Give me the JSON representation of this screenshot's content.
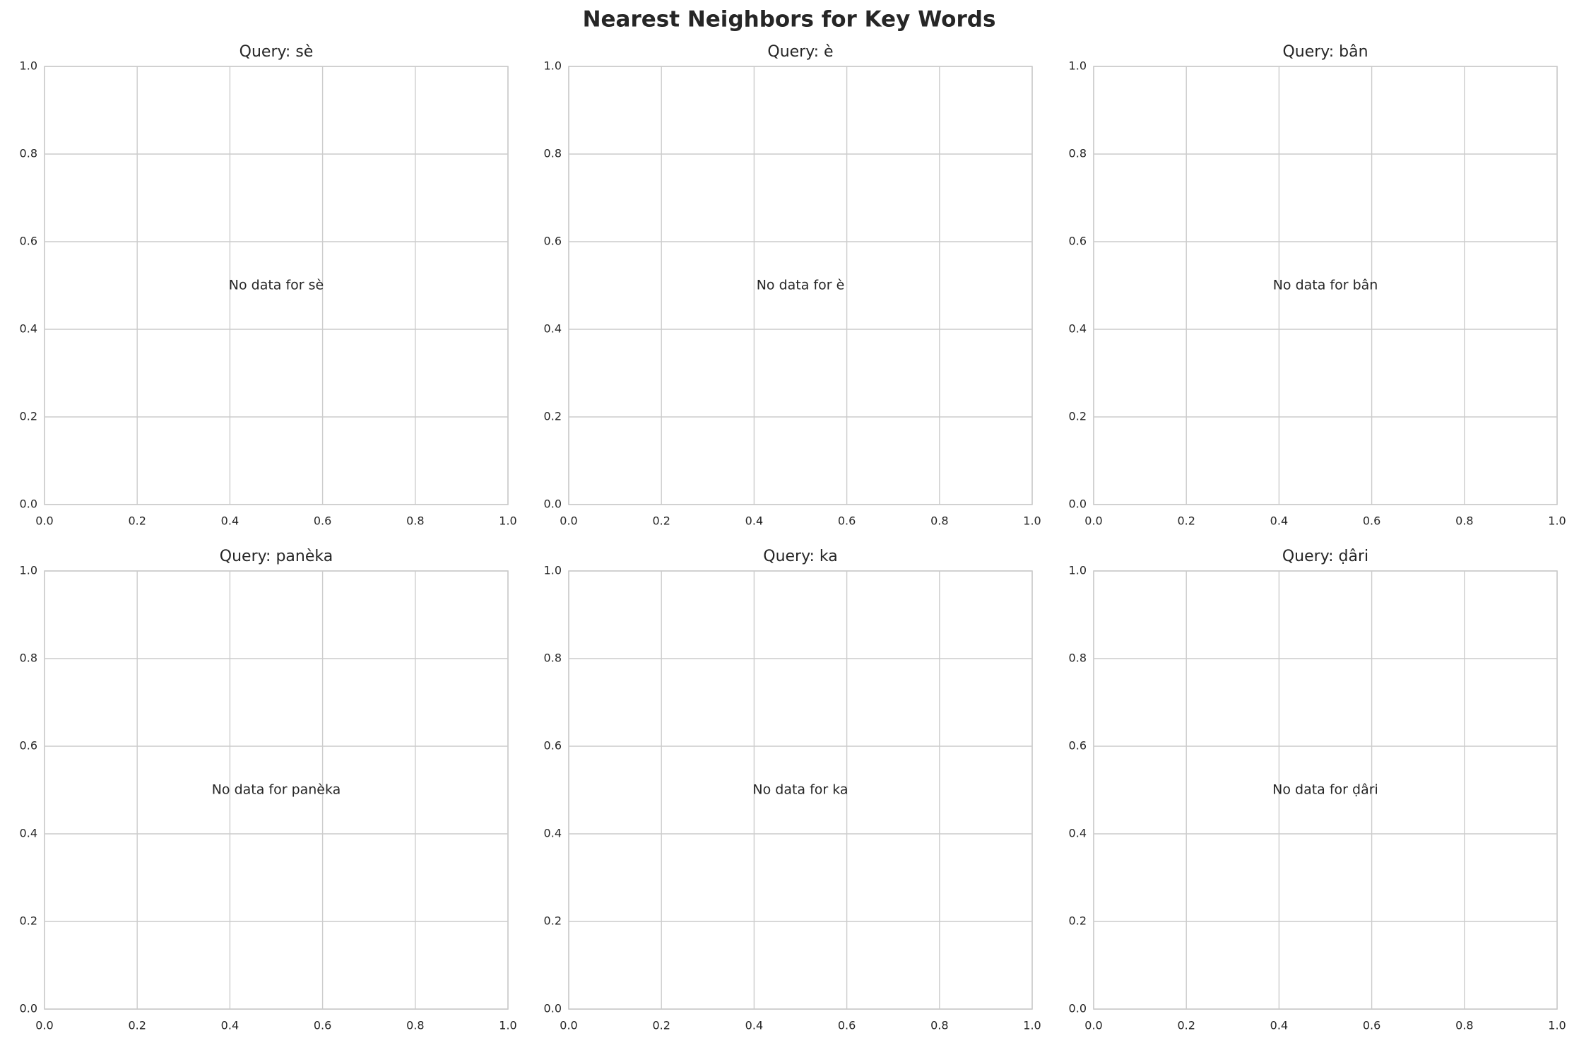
{
  "title": "Nearest Neighbors for Key Words",
  "chart_data": [
    {
      "type": "scatter",
      "title": "Query: sè",
      "annotation": "No data for sè",
      "xlim": [
        0,
        1
      ],
      "ylim": [
        0,
        1
      ],
      "xticks": [
        {
          "value": 0,
          "label": "0.0"
        },
        0.2,
        0.4,
        0.6,
        0.8,
        {
          "value": 1,
          "label": "1.0"
        }
      ],
      "yticks": [
        {
          "value": 0,
          "label": "0.0"
        },
        0.2,
        0.4,
        0.6,
        0.8,
        {
          "value": 1,
          "label": "1.0"
        }
      ],
      "grid": true
    },
    {
      "type": "scatter",
      "title": "Query: è",
      "annotation": "No data for è",
      "xlim": [
        0,
        1
      ],
      "ylim": [
        0,
        1
      ],
      "xticks": [
        {
          "value": 0,
          "label": "0.0"
        },
        0.2,
        0.4,
        0.6,
        0.8,
        {
          "value": 1,
          "label": "1.0"
        }
      ],
      "yticks": [
        {
          "value": 0,
          "label": "0.0"
        },
        0.2,
        0.4,
        0.6,
        0.8,
        {
          "value": 1,
          "label": "1.0"
        }
      ],
      "grid": true
    },
    {
      "type": "scatter",
      "title": "Query: bân",
      "annotation": "No data for bân",
      "xlim": [
        0,
        1
      ],
      "ylim": [
        0,
        1
      ],
      "xticks": [
        {
          "value": 0,
          "label": "0.0"
        },
        0.2,
        0.4,
        0.6,
        0.8,
        {
          "value": 1,
          "label": "1.0"
        }
      ],
      "yticks": [
        {
          "value": 0,
          "label": "0.0"
        },
        0.2,
        0.4,
        0.6,
        0.8,
        {
          "value": 1,
          "label": "1.0"
        }
      ],
      "grid": true
    },
    {
      "type": "scatter",
      "title": "Query: panèka",
      "annotation": "No data for panèka",
      "xlim": [
        0,
        1
      ],
      "ylim": [
        0,
        1
      ],
      "xticks": [
        {
          "value": 0,
          "label": "0.0"
        },
        0.2,
        0.4,
        0.6,
        0.8,
        {
          "value": 1,
          "label": "1.0"
        }
      ],
      "yticks": [
        {
          "value": 0,
          "label": "0.0"
        },
        0.2,
        0.4,
        0.6,
        0.8,
        {
          "value": 1,
          "label": "1.0"
        }
      ],
      "grid": true
    },
    {
      "type": "scatter",
      "title": "Query: ka",
      "annotation": "No data for ka",
      "xlim": [
        0,
        1
      ],
      "ylim": [
        0,
        1
      ],
      "xticks": [
        {
          "value": 0,
          "label": "0.0"
        },
        0.2,
        0.4,
        0.6,
        0.8,
        {
          "value": 1,
          "label": "1.0"
        }
      ],
      "yticks": [
        {
          "value": 0,
          "label": "0.0"
        },
        0.2,
        0.4,
        0.6,
        0.8,
        {
          "value": 1,
          "label": "1.0"
        }
      ],
      "grid": true
    },
    {
      "type": "scatter",
      "title": "Query: ḍâri",
      "annotation": "No data for ḍâri",
      "xlim": [
        0,
        1
      ],
      "ylim": [
        0,
        1
      ],
      "xticks": [
        {
          "value": 0,
          "label": "0.0"
        },
        0.2,
        0.4,
        0.6,
        0.8,
        {
          "value": 1,
          "label": "1.0"
        }
      ],
      "yticks": [
        {
          "value": 0,
          "label": "0.0"
        },
        0.2,
        0.4,
        0.6,
        0.8,
        {
          "value": 1,
          "label": "1.0"
        }
      ],
      "grid": true
    }
  ]
}
